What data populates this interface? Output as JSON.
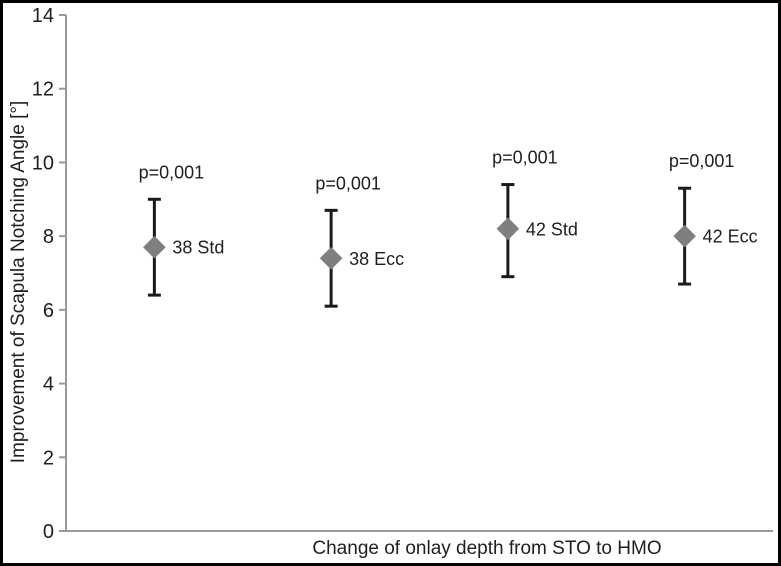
{
  "figure": {
    "border_color": "#000000",
    "background_color": "#ffffff"
  },
  "chart_data": {
    "type": "scatter",
    "title": "",
    "xlabel": "Change of onlay depth from STO to HMO",
    "ylabel": "Improvement of Scapula Notching Angle [°]",
    "ylim": [
      0,
      14
    ],
    "yticks": [
      0,
      2,
      4,
      6,
      8,
      10,
      12,
      14
    ],
    "grid": false,
    "legend": "none",
    "marker_shape": "diamond",
    "marker_color": "#7f7f7f",
    "error_bar_color": "#1a1a1a",
    "axis_color": "#999999",
    "text_color": "#1f1f1f",
    "points": [
      {
        "label": "38 Std",
        "mean": 7.7,
        "lower": 6.4,
        "upper": 9.0,
        "p_label": "p=0,001"
      },
      {
        "label": "38 Ecc",
        "mean": 7.4,
        "lower": 6.1,
        "upper": 8.7,
        "p_label": "p=0,001"
      },
      {
        "label": "42 Std",
        "mean": 8.2,
        "lower": 6.9,
        "upper": 9.4,
        "p_label": "p=0,001"
      },
      {
        "label": "42 Ecc",
        "mean": 8.0,
        "lower": 6.7,
        "upper": 9.3,
        "p_label": "p=0,001"
      }
    ]
  }
}
